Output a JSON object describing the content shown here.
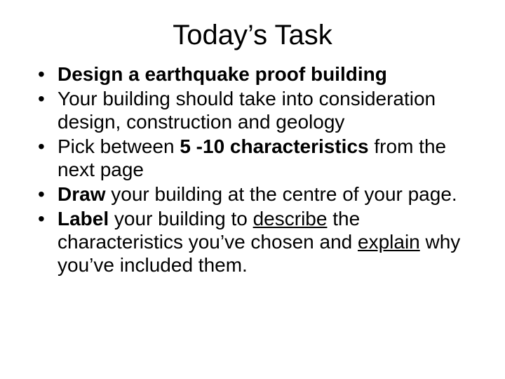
{
  "slide": {
    "title": "Today’s Task",
    "bullets": [
      {
        "parts": [
          {
            "t": "Design a earthquake proof building",
            "b": true
          }
        ]
      },
      {
        "parts": [
          {
            "t": "Your building should take into consideration design, construction and geology"
          }
        ]
      },
      {
        "parts": [
          {
            "t": "Pick between "
          },
          {
            "t": "5 -10 characteristics ",
            "b": true
          },
          {
            "t": "from the next page"
          }
        ]
      },
      {
        "parts": [
          {
            "t": "Draw ",
            "b": true
          },
          {
            "t": "your building at the centre of your page."
          }
        ]
      },
      {
        "parts": [
          {
            "t": "Label ",
            "b": true
          },
          {
            "t": "your building to "
          },
          {
            "t": "describe",
            "u": true
          },
          {
            "t": " the characteristics you’ve chosen and "
          },
          {
            "t": "explain",
            "u": true
          },
          {
            "t": " why you’ve included them."
          }
        ]
      }
    ]
  },
  "style": {
    "background_color": "#ffffff",
    "text_color": "#000000",
    "title_fontsize": 40,
    "body_fontsize": 28,
    "font_family": "Arial"
  }
}
